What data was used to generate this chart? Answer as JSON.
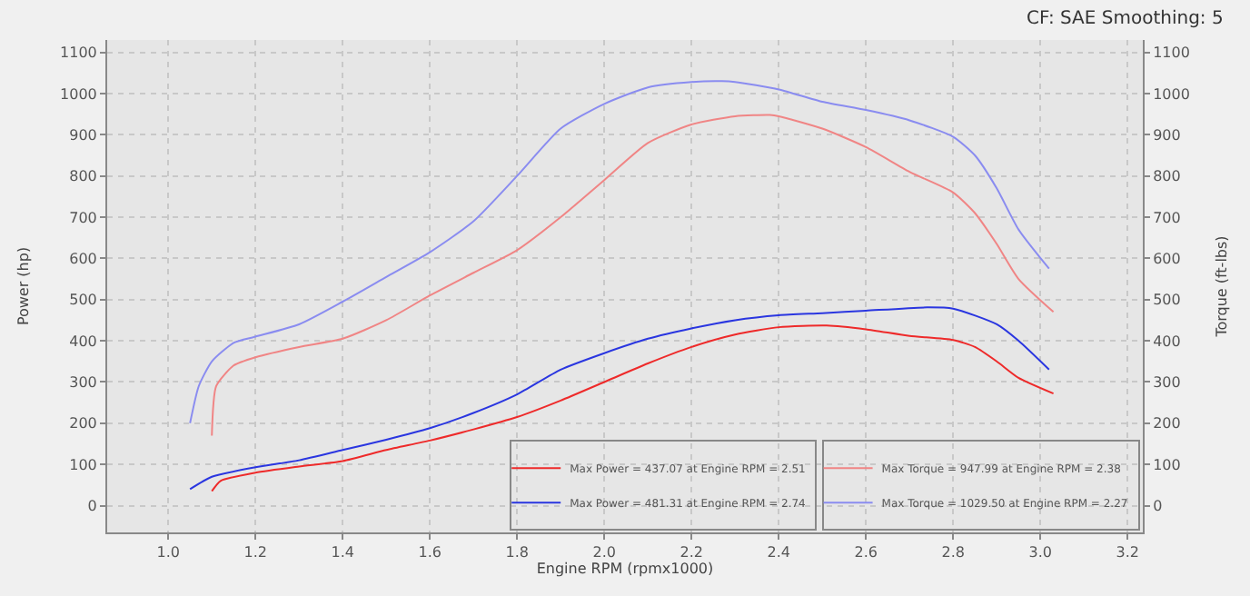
{
  "chart_data": {
    "type": "line",
    "xlabel": "Engine RPM (rpmx1000)",
    "ylabel": "Power (hp)",
    "y2label": "Torque (ft-lbs)",
    "annotations": [
      "CF: SAE Smoothing: 5"
    ],
    "xlim": [
      0.86,
      3.235
    ],
    "xticks": [
      {
        "value": 1.0,
        "label": "1.0"
      },
      {
        "value": 1.2,
        "label": "1.2"
      },
      {
        "value": 1.4,
        "label": "1.4"
      },
      {
        "value": 1.6,
        "label": "1.6"
      },
      {
        "value": 1.8,
        "label": "1.8"
      },
      {
        "value": 2.0,
        "label": "2.0"
      },
      {
        "value": 2.2,
        "label": "2.2"
      },
      {
        "value": 2.4,
        "label": "2.4"
      },
      {
        "value": 2.6,
        "label": "2.6"
      },
      {
        "value": 2.8,
        "label": "2.8"
      },
      {
        "value": 3.0,
        "label": "3.0"
      },
      {
        "value": 3.2,
        "label": "3.2"
      }
    ],
    "ylim": [
      -65,
      1130
    ],
    "yticks": [
      0,
      100,
      200,
      300,
      400,
      500,
      600,
      700,
      800,
      900,
      1000,
      1100
    ],
    "y2lim": [
      -65,
      1130
    ],
    "y2ticks": [
      0,
      100,
      200,
      300,
      400,
      500,
      600,
      700,
      800,
      900,
      1000,
      1100
    ],
    "grid": true,
    "legend": "bottom right",
    "marker": "none",
    "line_style": "solid",
    "series": [
      {
        "name": "Max Power = 437.07 at Engine RPM = 2.51",
        "color": "#ee2a2a",
        "x": [
          1.1,
          1.12,
          1.2,
          1.3,
          1.4,
          1.5,
          1.6,
          1.7,
          1.8,
          1.9,
          2.0,
          2.1,
          2.2,
          2.3,
          2.4,
          2.51,
          2.6,
          2.7,
          2.8,
          2.85,
          2.9,
          2.95,
          3.03
        ],
        "values": [
          35,
          60,
          80,
          95,
          108,
          135,
          158,
          185,
          215,
          255,
          300,
          345,
          385,
          415,
          433,
          437,
          428,
          412,
          402,
          385,
          350,
          310,
          272
        ]
      },
      {
        "name": "Max Torque = 947.99 at Engine RPM = 2.38",
        "color": "#f08585",
        "axis": "y2",
        "x": [
          1.1,
          1.11,
          1.15,
          1.2,
          1.3,
          1.4,
          1.5,
          1.6,
          1.7,
          1.8,
          1.9,
          2.0,
          2.1,
          2.2,
          2.3,
          2.38,
          2.4,
          2.5,
          2.6,
          2.7,
          2.8,
          2.85,
          2.9,
          2.95,
          3.03
        ],
        "values": [
          170,
          290,
          340,
          360,
          385,
          405,
          450,
          510,
          565,
          620,
          700,
          790,
          880,
          925,
          945,
          948,
          945,
          915,
          870,
          810,
          760,
          710,
          635,
          550,
          470
        ]
      },
      {
        "name": "Max Power = 481.31 at Engine RPM = 2.74",
        "color": "#2a36e0",
        "x": [
          1.05,
          1.1,
          1.2,
          1.3,
          1.4,
          1.5,
          1.6,
          1.7,
          1.8,
          1.9,
          2.0,
          2.1,
          2.2,
          2.3,
          2.4,
          2.5,
          2.6,
          2.74,
          2.8,
          2.9,
          2.95,
          3.02
        ],
        "values": [
          40,
          70,
          93,
          110,
          135,
          160,
          188,
          225,
          270,
          330,
          370,
          405,
          430,
          450,
          462,
          467,
          473,
          481,
          478,
          440,
          400,
          330
        ]
      },
      {
        "name": "Max Torque = 1029.50 at Engine RPM = 2.27",
        "color": "#8a8cf0",
        "axis": "y2",
        "x": [
          1.05,
          1.07,
          1.1,
          1.15,
          1.2,
          1.3,
          1.4,
          1.5,
          1.6,
          1.7,
          1.8,
          1.9,
          2.0,
          2.1,
          2.2,
          2.27,
          2.3,
          2.4,
          2.5,
          2.6,
          2.7,
          2.8,
          2.85,
          2.9,
          2.95,
          3.02
        ],
        "values": [
          200,
          290,
          350,
          395,
          410,
          440,
          495,
          555,
          615,
          690,
          800,
          915,
          975,
          1015,
          1028,
          1030,
          1028,
          1010,
          980,
          960,
          935,
          895,
          850,
          770,
          670,
          575
        ]
      }
    ]
  }
}
